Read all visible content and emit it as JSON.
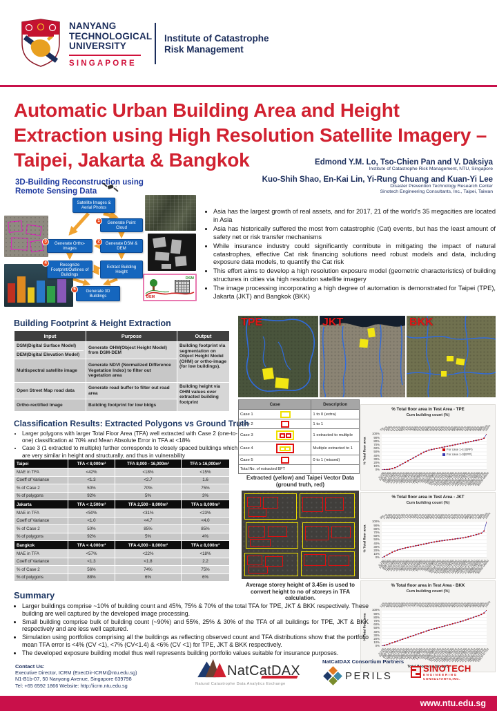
{
  "header": {
    "university": [
      "NANYANG",
      "TECHNOLOGICAL",
      "UNIVERSITY"
    ],
    "country": "SINGAPORE",
    "institute": [
      "Institute of Catastrophe",
      "Risk Management"
    ]
  },
  "title": "Automatic Urban Building Area and Height Extraction using High Resolution Satellite Imagery – Taipei, Jakarta & Bangkok",
  "authors": {
    "line1": "Edmond Y.M. Lo, Tso-Chien Pan and V. Daksiya",
    "affil1": "Institute of Catastrophe Risk Management, NTU, Singapore",
    "line2": "Kuo-Shih Shao, En-Kai Lin, Yi-Rung Chuang and Kuan-Yi Lee",
    "affil2a": "Disaster Prevention Technology Research Center",
    "affil2b": "Sinotech Engineering Consultants, Inc., Taipei, Taiwan"
  },
  "diagram": {
    "heading": [
      "3D-Building Reconstruction using",
      "Remote Sensing Data"
    ],
    "boxes": {
      "source": "Satellite Images & Aerial Photos",
      "step1": "Generate Point Cloud",
      "step2": "Generate DSM & DEM",
      "step3": "Generate Ortho-images",
      "step4": "Recognize Footprint/Outlines of Buildings",
      "height": "Extract Building Height",
      "step5": "Generate 3D Buildings"
    },
    "nums": {
      "n1": "1",
      "n2": "2",
      "n3": "3",
      "n4": "4",
      "n5": "5"
    },
    "dem": "DEM",
    "dsm": "DSM"
  },
  "intro_bullets": [
    "Asia has the largest growth of real assets, and for 2017, 21 of the world's 35 megacities are located in Asia",
    "Asia has historically suffered the most from catastrophic (Cat) events, but has the least amount of safety net or risk transfer mechanisms",
    "While insurance industry could significantly contribute in mitigating the impact of natural catastrophes, effective Cat risk financing solutions need robust models and data, including exposure data models, to quantify the Cat risk",
    "This effort aims to develop a high resolution exposure model (geometric characteristics) of building structures in cities via high resolution satellite imagery",
    "The image processing incorporating a high degree of automation is demonstrated for Taipei (TPE), Jakarta (JKT) and Bangkok (BKK)"
  ],
  "bfhe": {
    "heading": "Building Footprint & Height Extraction",
    "cols": [
      "Input",
      "Purpose",
      "Output"
    ],
    "row1_input_a": "DSM(Digital Surface Model)",
    "row1_input_b": "DEM(Digital Elevation Model)",
    "row1_purpose": "Generate OHM(Object Height Model) from DSM-DEM",
    "row2_input": "Multispectral satellite image",
    "row2_purpose": "Generate NDVI (Normalized Difference Vegetation Index) to filter out vegetation area",
    "row3_input": "Open Street Map road data",
    "row3_purpose": "Generate road buffer to filter out road area",
    "row4_input": "Ortho-rectified Image",
    "row4_purpose": "Building footprint for low bldgs",
    "output1": "Building footprint via segmentation on Object Height Model (OHM) or ortho-image (for low buildings).",
    "output2": "Building height via OHM values over extracted building footprint"
  },
  "maps": {
    "tpe": "TPE",
    "jkt": "JKT",
    "bkk": "BKK"
  },
  "case_table": {
    "col_case": "Case",
    "col_desc": "Description",
    "rows": [
      {
        "label": "Case 1",
        "desc": "1 to 0 (extra)"
      },
      {
        "label": "Case 2",
        "desc": "1 to 1"
      },
      {
        "label": "Case 3",
        "desc": "1 extracted to multiple"
      },
      {
        "label": "Case 4",
        "desc": "Multiple extracted to 1"
      },
      {
        "label": "Case 5",
        "desc": "0 to 1 (missed)"
      }
    ],
    "footer": "Total No. of extracted BFT"
  },
  "classification": {
    "heading": "Classification Results: Extracted Polygons vs Ground Truth",
    "bullets": [
      "Larger polygons with larger Total Floor Area (TFA) well extracted with Case 2 (one-to-one) classification at 70% and Mean Absolute Error in TFA at <18%",
      "Case 3 (1 extracted to multiple) further corresponds to closely spaced buildings which are very similar in height and structurally, and thus in vulnerability"
    ],
    "tables": [
      {
        "city": "Taipei",
        "cols": [
          "TFA < 8,000m²",
          "TFA 8,000 - 16,000m²",
          "TFA ≥ 16,000m²"
        ],
        "rows": [
          [
            "MAE in TFA",
            "<42%",
            "<18%",
            "<15%"
          ],
          [
            "Coeff of Variance",
            "<1.3",
            "<2.7",
            "1.6"
          ],
          [
            "% of Case 2",
            "50%",
            "70%",
            "75%"
          ],
          [
            "% of polygons",
            "92%",
            "5%",
            "3%"
          ]
        ]
      },
      {
        "city": "Jakarta",
        "cols": [
          "TFA < 2,500m²",
          "TFA 2,500 - 8,000m²",
          "TFA ≥ 8,000m²"
        ],
        "rows": [
          [
            "MAE in TFA",
            "<50%",
            "<31%",
            "<23%"
          ],
          [
            "Coeff of Variance",
            "<1.0",
            "<4.7",
            "<4.0"
          ],
          [
            "% of Case 2",
            "50%",
            "85%",
            "85%"
          ],
          [
            "% of polygons",
            "92%",
            "5%",
            "4%"
          ]
        ]
      },
      {
        "city": "Bangkok",
        "cols": [
          "TFA < 4,000m²",
          "TFA 4,000 - 8,000m²",
          "TFA ≥ 8,000m²"
        ],
        "rows": [
          [
            "MAE in TFA",
            "<57%",
            "<22%",
            "<18%"
          ],
          [
            "Coeff of Variance",
            "<1.3",
            "<1.8",
            "2.2"
          ],
          [
            "% of Case 2",
            "56%",
            "74%",
            "75%"
          ],
          [
            "% of polygons",
            "88%",
            "6%",
            "6%"
          ]
        ]
      }
    ]
  },
  "extracted": {
    "caption_top": "Extracted (yellow) and Taipei Vector Data (ground truth, red)",
    "caption_bottom": "Average storey height of 3.45m is used to convert height to no of storeys in TFA calculation."
  },
  "summary": {
    "heading": "Summary",
    "bullets": [
      "Larger buildings comprise ~10% of building count and 45%, 75% & 70% of the total TFA for TPE, JKT & BKK respectively. These building are well captured by the developed image processing.",
      "Small building comprise bulk of building count (~90%) and 55%, 25% & 30% of the TFA of all buildings for TPE, JKT & BKK respectively and are less well captured.",
      "Simulation using portfolios comprising all the buildings as reflecting observed count and TFA distributions show that the portfolio mean TFA error is <4% (CV <1), <7% (CV<1.4) & <6% (CV <1) for TPE, JKT & BKK respectively.",
      "The developed exposure building model thus well represents building portfolio values suitable for insurance purposes."
    ]
  },
  "contact": {
    "heading": "Contact Us:",
    "line1": "Executive Director, ICRM (ExecDir-ICRM@ntu.edu.sg)",
    "line2": "N1-B1b-07, 50 Nanyang Avenue, Singapore 639798",
    "line3": "Tel: +65 6592 1866    Website: http://icrm.ntu.edu.sg"
  },
  "logos": {
    "natcatdax_name": "NatCatDAX",
    "natcatdax_tagline": "Natural Catastrophe Data Analytics Exchange",
    "partners_label": "NatCatDAX Consortium Partners",
    "perils": "PERILS",
    "sinotech": [
      "SINOTECH",
      "ENGINEERING",
      "CONSULTANTS,INC."
    ]
  },
  "footer": {
    "url": "www.ntu.edu.sg"
  },
  "colors": {
    "ntu_red": "#D0103A",
    "navy": "#1B2D5B",
    "title_red": "#D12130",
    "flow_blue": "#1566BE",
    "arrow_orange": "#F0A230",
    "footer_red": "#C9104A",
    "chart_line": "#3A3AAE",
    "chart_marker": "#C00000",
    "case_red": "#E01010",
    "case_yellow": "#F0E000"
  },
  "chart_data": [
    {
      "type": "line",
      "title": "% Total floor area in Test Area - TPE",
      "top_axis_label": "Cum building count (%)",
      "ylabel": "% Total floor area",
      "xlabel": "",
      "ylim": [
        0,
        100
      ],
      "grid": true,
      "legend_position": "inside-right",
      "yticks": [
        "0%",
        "10%",
        "20%",
        "30%",
        "40%",
        "50%",
        "60%",
        "70%",
        "80%",
        "90%",
        "100%"
      ],
      "x_bins": [
        "0-100",
        "100-400",
        "400-800",
        "800-1200",
        "1200-1600",
        "1600-2000",
        "2000-2400",
        "2400-2800",
        "2800-3200",
        "3200-3600",
        "3600-4000",
        "4000-4400",
        "4400-4900",
        "4900-5400",
        "5400-5900",
        "5900-6400",
        "6400-7000",
        "7000-7600",
        "7600-8200",
        "8200-8900",
        "8900-9600",
        "9600-10300",
        "10300-11100",
        "11100-12000",
        "12000-12900",
        "12900-13900",
        "13900-15000",
        "15000-16200",
        "16200-17500",
        "17500-18900",
        "18900-20400",
        "20400-22000",
        "22000-23800",
        "23800-25700",
        "25700-27800",
        "27800-30000",
        "30000-32500",
        "32500-36000",
        "36000-42000",
        "42000-51700",
        "60000-96900"
      ],
      "cum_count_labels": [
        "7%",
        "29%",
        "40%",
        "47%",
        "52%",
        "57%",
        "61%",
        "65%",
        "68%",
        "71%",
        "74%",
        "76%",
        "78%",
        "80%",
        "82%",
        "83%",
        "85%",
        "86%",
        "87%",
        "88%",
        "89%",
        "90%",
        "91%",
        "92%",
        "93%",
        "93%",
        "94%",
        "95%",
        "95%",
        "96%",
        "96%",
        "97%",
        "97%",
        "98%",
        "98%",
        "98%",
        "99%",
        "99%",
        "99%",
        "100%",
        "100%"
      ],
      "values": [
        0,
        0.5,
        1,
        2,
        3.5,
        6,
        9,
        13,
        17,
        21,
        25,
        29,
        33,
        37,
        41,
        45,
        49,
        52,
        55,
        56.5,
        58,
        59.5,
        61,
        62.5,
        64,
        65.5,
        67,
        68.5,
        70,
        71.5,
        73,
        74.5,
        76,
        77.5,
        79,
        80.5,
        82,
        83.5,
        85,
        88,
        100
      ],
      "legend": [
        {
          "label": "For case 1-4 (EPP)",
          "color": "#CC0000"
        },
        {
          "label": "For case 1-3(EPP)",
          "color": "#3A3AAE"
        }
      ]
    },
    {
      "type": "line",
      "title": "% Total floor area in Test Area - JKT",
      "top_axis_label": "Cum building count (%)",
      "ylabel": "% Total floor area",
      "xlabel": "",
      "ylim": [
        0,
        100
      ],
      "grid": true,
      "yticks": [
        "0%",
        "10%",
        "20%",
        "30%",
        "40%",
        "50%",
        "60%",
        "70%",
        "80%",
        "90%",
        "100%"
      ],
      "x_bins": [
        "0-100",
        "100-400",
        "400-800",
        "800-1200",
        "1200-1600",
        "1600-2000",
        "2000-2400",
        "2400-2800",
        "2800-3200",
        "3200-3600",
        "3600-4000",
        "4000-4400",
        "4400-4900",
        "4900-5400",
        "5400-5900",
        "5900-6400",
        "6400-7000",
        "7000-7600",
        "7600-8200",
        "8200-8900",
        "8900-9600",
        "9600-10300",
        "10300-11100",
        "11100-12000",
        "12000-12900",
        "12900-13900",
        "13900-15000",
        "15000-16200",
        "16200-17500",
        "17500-18900",
        "18900-20400",
        "20400-22000",
        "22000-23800",
        "23800-25700",
        "25700-27800",
        "27800-30000",
        "30000-32500",
        "32500-36000",
        "36000-42000",
        "42000-51700",
        "60000-96900"
      ],
      "cum_count_labels": [
        "9%",
        "27%",
        "42%",
        "50%",
        "56%",
        "60%",
        "64%",
        "67%",
        "70%",
        "72%",
        "74%",
        "76%",
        "78%",
        "79%",
        "81%",
        "82%",
        "83%",
        "84%",
        "85%",
        "86%",
        "87%",
        "88%",
        "88%",
        "89%",
        "90%",
        "90%",
        "91%",
        "92%",
        "92%",
        "93%",
        "94%",
        "94%",
        "95%",
        "95%",
        "96%",
        "97%",
        "97%",
        "98%",
        "99%",
        "100%",
        "100%"
      ],
      "values": [
        0,
        3,
        7,
        11,
        15,
        18,
        21,
        23,
        25,
        27,
        28.5,
        30,
        31.5,
        33,
        34.5,
        36,
        37.5,
        39,
        40.5,
        42,
        43.5,
        45,
        46,
        47,
        48,
        49,
        50,
        51,
        52,
        53,
        54,
        55,
        56.5,
        58,
        60,
        62,
        64,
        66,
        68,
        74,
        100
      ],
      "legend": []
    },
    {
      "type": "line",
      "title": "% Total floor area in Test Area - BKK",
      "top_axis_label": "Cum building count (%)",
      "ylabel": "% Total floor area",
      "xlabel": "Total floor area bin (m²)",
      "ylim": [
        0,
        100
      ],
      "grid": true,
      "yticks": [
        "0%",
        "10%",
        "20%",
        "30%",
        "40%",
        "50%",
        "60%",
        "70%",
        "80%",
        "90%",
        "100%"
      ],
      "x_bins": [
        "0-100",
        "100-400",
        "400-800",
        "800-1200",
        "1200-1600",
        "1600-2000",
        "2000-2400",
        "2400-2800",
        "2800-3200",
        "3200-3600",
        "3600-4000",
        "4000-4400",
        "4400-4900",
        "4900-5400",
        "5400-5900",
        "5900-6400",
        "6400-7000",
        "7000-7600",
        "7600-8200",
        "8200-8900",
        "8900-9600",
        "9600-10300",
        "10300-11100",
        "11100-12000",
        "12000-12900",
        "12900-13900",
        "13900-15000",
        "15000-16200",
        "16200-17500",
        "17500-18900",
        "18900-20400",
        "20400-22000",
        "22000-23800",
        "23800-25700",
        "25700-27800",
        "27800-30000",
        "30000-32500",
        "32500-36000",
        "36000-42000",
        "42000-51700",
        "43000-97700"
      ],
      "cum_count_labels": [
        "12%",
        "30%",
        "42%",
        "50%",
        "55%",
        "59%",
        "62%",
        "65%",
        "68%",
        "70%",
        "72%",
        "74%",
        "75%",
        "77%",
        "78%",
        "80%",
        "81%",
        "82%",
        "83%",
        "84%",
        "85%",
        "86%",
        "87%",
        "88%",
        "88%",
        "89%",
        "90%",
        "90%",
        "91%",
        "92%",
        "92%",
        "93%",
        "94%",
        "94%",
        "95%",
        "96%",
        "96%",
        "97%",
        "98%",
        "99%",
        "100%"
      ],
      "values": [
        0,
        2,
        4,
        6.5,
        9,
        11.5,
        14,
        16.5,
        19,
        21.5,
        24,
        26.5,
        29,
        31.5,
        34,
        36.5,
        39,
        41.5,
        44,
        46,
        48,
        50,
        52,
        54,
        56,
        58,
        60,
        62,
        64,
        66,
        68,
        70,
        72.5,
        75,
        77.5,
        80,
        82.5,
        85,
        88,
        92,
        100
      ],
      "legend": []
    }
  ]
}
